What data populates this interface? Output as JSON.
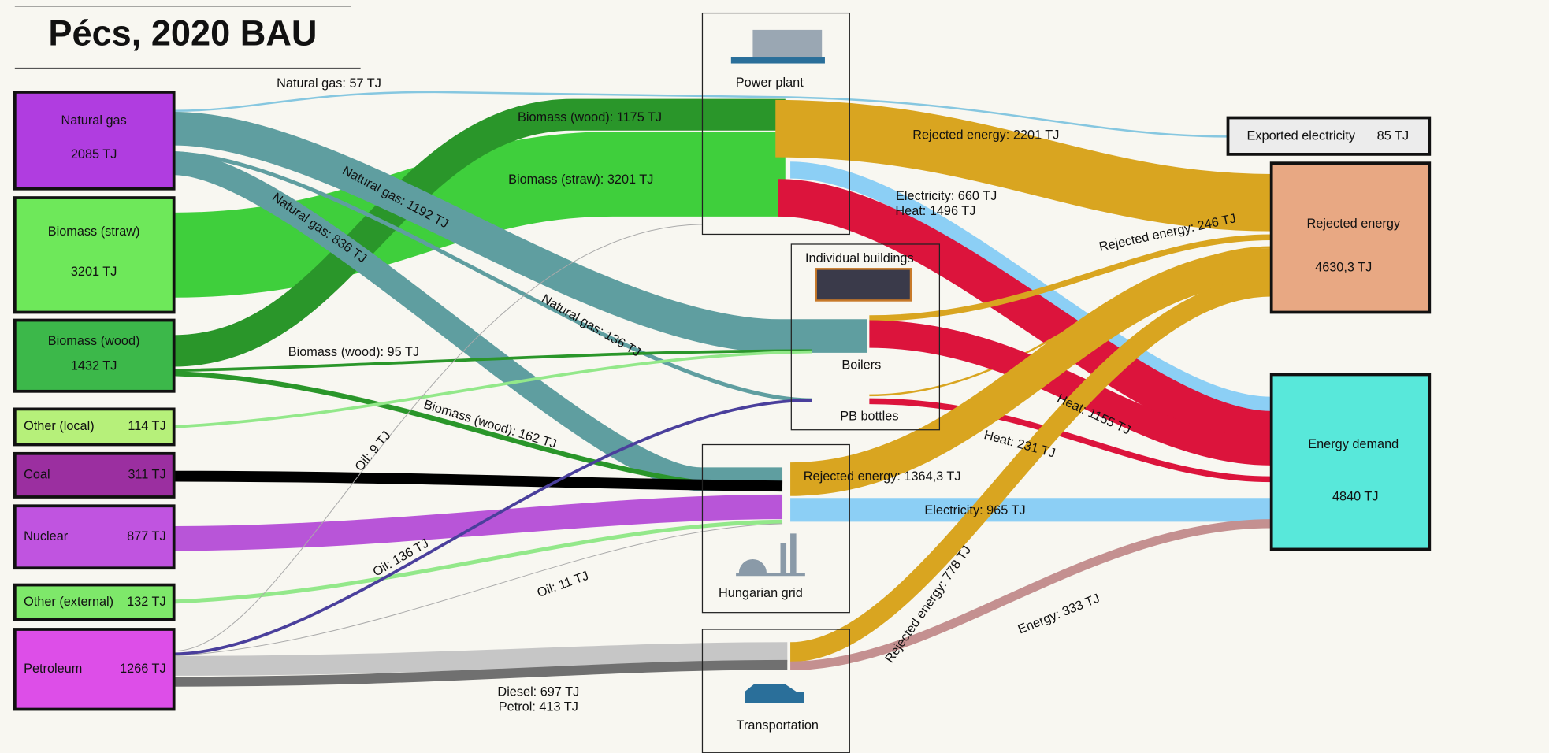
{
  "title": "Pécs, 2020 BAU",
  "sources": [
    {
      "name": "Natural gas",
      "value": "2085 TJ"
    },
    {
      "name": "Biomass (straw)",
      "value": "3201 TJ"
    },
    {
      "name": "Biomass (wood)",
      "value": "1432 TJ"
    },
    {
      "name": "Other (local)",
      "value": "114 TJ"
    },
    {
      "name": "Coal",
      "value": "311 TJ"
    },
    {
      "name": "Nuclear",
      "value": "877 TJ"
    },
    {
      "name": "Other (external)",
      "value": "132 TJ"
    },
    {
      "name": "Petroleum",
      "value": "1266 TJ"
    }
  ],
  "processes": [
    "Power plant",
    "Individual buildings",
    "Boilers",
    "PB bottles",
    "Hungarian grid",
    "Transportation"
  ],
  "sinks": [
    {
      "name": "Exported electricity",
      "value": "85 TJ"
    },
    {
      "name": "Rejected energy",
      "value": "4630,3 TJ"
    },
    {
      "name": "Energy demand",
      "value": "4840 TJ"
    }
  ],
  "flows": [
    "Natural gas: 57 TJ",
    "Biomass (wood): 1175 TJ",
    "Biomass (straw): 3201 TJ",
    "Natural gas: 1192 TJ",
    "Natural gas: 836 TJ",
    "Natural gas: 136 TJ",
    "Biomass (wood): 95 TJ",
    "Biomass (wood): 162 TJ",
    "Oil: 9 TJ",
    "Oil: 136 TJ",
    "Oil: 11 TJ",
    "Diesel: 697 TJ",
    "Petrol: 413 TJ",
    "Rejected energy: 2201 TJ",
    "Electricity: 660 TJ",
    "Heat: 1496 TJ",
    "Rejected energy: 246 TJ",
    "Heat: 1155 TJ",
    "Heat: 231 TJ",
    "Rejected energy: 1364,3 TJ",
    "Electricity: 965 TJ",
    "Rejected energy: 778 TJ",
    "Energy: 333 TJ"
  ]
}
